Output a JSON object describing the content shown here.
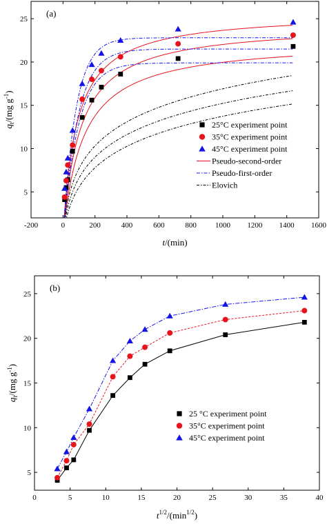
{
  "chart_data": [
    {
      "panel": "(a)",
      "type": "scatter",
      "xlabel_var": "t",
      "xlabel_unit": "/(min)",
      "ylabel_var": "q",
      "ylabel_sub": "t",
      "ylabel_unit": "/(mg g",
      "ylabel_sup": "-1",
      "ylabel_close": ")",
      "xlim": [
        -200,
        1600
      ],
      "ylim": [
        2,
        27
      ],
      "xticks": [
        -200,
        0,
        200,
        400,
        600,
        800,
        1000,
        1200,
        1400,
        1600
      ],
      "yticks": [
        5,
        10,
        15,
        20,
        25
      ],
      "grid": false,
      "legend_position": "right-center",
      "series": [
        {
          "name": "25°C experiment point",
          "marker": "square",
          "color": "#000000",
          "x": [
            10,
            20,
            30,
            60,
            120,
            180,
            240,
            360,
            720,
            1440
          ],
          "y": [
            4.1,
            5.5,
            6.4,
            9.7,
            13.6,
            15.6,
            17.1,
            18.6,
            20.4,
            21.8
          ]
        },
        {
          "name": "35°C experiment point",
          "marker": "circle",
          "color": "#e8141c",
          "x": [
            10,
            20,
            30,
            60,
            120,
            180,
            240,
            360,
            720,
            1440
          ],
          "y": [
            4.4,
            6.3,
            8.1,
            10.4,
            15.7,
            18.0,
            19.0,
            20.6,
            22.1,
            23.1
          ]
        },
        {
          "name": "45°C experiment point",
          "marker": "triangle",
          "color": "#1414e6",
          "x": [
            10,
            20,
            30,
            60,
            120,
            180,
            240,
            360,
            720,
            1440
          ],
          "y": [
            5.4,
            7.3,
            8.9,
            12.1,
            17.5,
            19.7,
            21.0,
            22.5,
            23.8,
            24.6
          ]
        }
      ],
      "fits": [
        {
          "name": "Pseudo-second-order",
          "model": "pso",
          "color": "#e8141c",
          "dash": "",
          "params": [
            [
              22.5,
              0.00035
            ],
            [
              24.4,
              0.00038
            ],
            [
              25.7,
              0.00045
            ]
          ]
        },
        {
          "name": "Pseudo-first-order",
          "model": "pfo",
          "color": "#1414e6",
          "dash": "5 2 1.5 2",
          "params": [
            [
              19.9,
              0.0105
            ],
            [
              21.5,
              0.0108
            ],
            [
              22.8,
              0.0125
            ]
          ]
        },
        {
          "name": "Elovich",
          "model": "elovich",
          "color": "#000000",
          "dash": "4 2 1.5 2",
          "params": [
            [
              4.0,
              0.03
            ],
            [
              4.1,
              0.04
            ],
            [
              4.3,
              0.05
            ]
          ]
        }
      ]
    },
    {
      "panel": "(b)",
      "type": "line",
      "xlabel_var": "t",
      "xlabel_sup": "1/2",
      "xlabel_unit": "/(min",
      "xlabel_unit_sup": "1/2",
      "xlabel_close": ")",
      "ylabel_var": "q",
      "ylabel_sub": "t",
      "ylabel_unit": "/(mg g",
      "ylabel_sup": "-1",
      "ylabel_close": ")",
      "xlim": [
        0,
        40
      ],
      "ylim": [
        3,
        27
      ],
      "xticks": [
        0,
        5,
        10,
        15,
        20,
        25,
        30,
        35,
        40
      ],
      "yticks": [
        5,
        10,
        15,
        20,
        25
      ],
      "grid": false,
      "legend_position": "right-bottom",
      "series": [
        {
          "name": "25 °C experiment point",
          "marker": "square",
          "color": "#000000",
          "line_dash": "",
          "x": [
            3.2,
            4.5,
            5.5,
            7.7,
            11.0,
            13.4,
            15.5,
            19.0,
            26.8,
            37.9
          ],
          "y": [
            4.1,
            5.5,
            6.4,
            9.7,
            13.6,
            15.6,
            17.1,
            18.6,
            20.4,
            21.8
          ]
        },
        {
          "name": "35°C experiment point",
          "marker": "circle",
          "color": "#e8141c",
          "line_dash": "3 2",
          "x": [
            3.2,
            4.5,
            5.5,
            7.7,
            11.0,
            13.4,
            15.5,
            19.0,
            26.8,
            37.9
          ],
          "y": [
            4.4,
            6.3,
            8.1,
            10.4,
            15.7,
            18.0,
            19.0,
            20.6,
            22.1,
            23.1
          ]
        },
        {
          "name": "45°C experiment point",
          "marker": "triangle",
          "color": "#1414e6",
          "line_dash": "6 2 1.5 2",
          "x": [
            3.2,
            4.5,
            5.5,
            7.7,
            11.0,
            13.4,
            15.5,
            19.0,
            26.8,
            37.9
          ],
          "y": [
            5.4,
            7.3,
            8.9,
            12.1,
            17.5,
            19.7,
            21.0,
            22.5,
            23.8,
            24.6
          ]
        }
      ]
    }
  ]
}
